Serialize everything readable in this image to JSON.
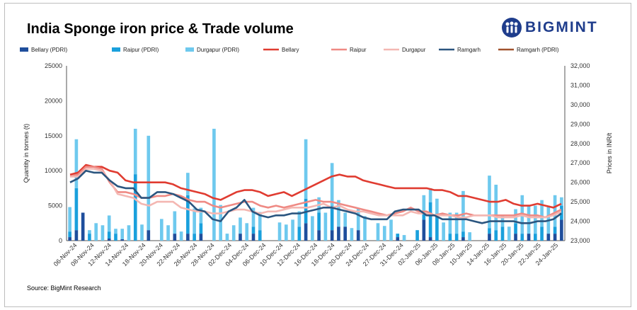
{
  "header": {
    "title": "India Sponge iron price & Trade volume",
    "logo_text": "BIGMINT"
  },
  "footer": {
    "source": "Source: BigMint Research"
  },
  "colors": {
    "bellary_pdri": "#1f4e9c",
    "raipur_pdri": "#1aa0dc",
    "durgapur_pdri": "#6ec9ee",
    "bellary": "#e03c31",
    "raipur": "#ef8a84",
    "durgapur": "#f4b7b2",
    "ramgarh": "#2b557f",
    "ramgarh_pdri": "#a0522d"
  },
  "chart_data": {
    "type": "bar+line",
    "title": "India Sponge iron price & Trade volume",
    "ylabel": "Quantity in tonnes (t)",
    "y2label": "Prices in INR/t",
    "ylim": [
      0,
      25000
    ],
    "y2lim": [
      23000,
      32000
    ],
    "yticks": [
      "0",
      "5000",
      "10000",
      "15000",
      "20000",
      "25000"
    ],
    "y2ticks": [
      "23,000",
      "24,000",
      "25,000",
      "26,000",
      "27,000",
      "28,000",
      "29,000",
      "30,000",
      "31,000",
      "32,000"
    ],
    "x_tick_labels": [
      "06-Nov-24",
      "08-Nov-24",
      "12-Nov-24",
      "14-Nov-24",
      "18-Nov-24",
      "20-Nov-24",
      "22-Nov-24",
      "26-Nov-24",
      "28-Nov-24",
      "02-Dec-24",
      "04-Dec-24",
      "06-Dec-24",
      "10-Dec-24",
      "12-Dec-24",
      "16-Dec-24",
      "18-Dec-24",
      "20-Dec-24",
      "24-Dec-24",
      "27-Dec-24",
      "31-Dec-24",
      "02-Jan-25",
      "06-Jan-25",
      "08-Jan-25",
      "10-Jan-25",
      "14-Jan-25",
      "16-Jan-25",
      "20-Jan-25",
      "22-Jan-25",
      "24-Jan-25"
    ],
    "legend": [
      "Bellary (PDRI)",
      "Raipur (PDRI)",
      "Durgapur (PDRI)",
      "Bellary",
      "Raipur",
      "Durgapur",
      "Ramgarh",
      "Ramgarh (PDRI)"
    ],
    "bar_series": [
      {
        "name": "Bellary (PDRI)",
        "values": [
          500,
          1500,
          4000,
          0,
          0,
          0,
          300,
          0,
          200,
          0,
          0,
          0,
          1500,
          0,
          0,
          0,
          1000,
          0,
          1000,
          0,
          1000,
          0,
          0,
          0,
          0,
          0,
          1000,
          0,
          1000,
          0,
          0,
          0,
          0,
          0,
          0,
          0,
          2500,
          0,
          1500,
          0,
          1500,
          2000,
          2000,
          0,
          1500,
          0,
          0,
          0,
          0,
          0,
          500,
          0,
          0,
          0,
          3000,
          500,
          0,
          0,
          0,
          0,
          500,
          0,
          0,
          0,
          1000,
          0,
          0,
          0,
          1000,
          0,
          1000,
          0,
          0,
          1000,
          1000,
          3000
        ]
      },
      {
        "name": "Raipur (PDRI)",
        "values": [
          800,
          6000,
          0,
          1000,
          0,
          0,
          1000,
          1000,
          0,
          0,
          9500,
          0,
          0,
          0,
          0,
          0,
          0,
          0,
          5500,
          1000,
          1500,
          0,
          0,
          0,
          0,
          0,
          0,
          0,
          1000,
          1500,
          0,
          0,
          0,
          0,
          0,
          2000,
          3500,
          0,
          2500,
          0,
          3500,
          0,
          0,
          0,
          0,
          0,
          0,
          0,
          0,
          0,
          500,
          0,
          0,
          1500,
          1000,
          5000,
          3500,
          0,
          1000,
          1000,
          800,
          0,
          0,
          0,
          800,
          1500,
          2000,
          0,
          1500,
          1000,
          0,
          1000,
          2000,
          0,
          1000,
          2000
        ]
      },
      {
        "name": "Durgapur (PDRI)",
        "values": [
          3500,
          7000,
          0,
          500,
          2500,
          2200,
          2300,
          700,
          1500,
          2200,
          6500,
          2300,
          13500,
          0,
          3100,
          2200,
          3200,
          1300,
          3200,
          3600,
          2200,
          0,
          16000,
          5100,
          1000,
          2200,
          2300,
          2500,
          2700,
          2600,
          0,
          0,
          2600,
          2300,
          3000,
          2200,
          8500,
          3500,
          2200,
          4000,
          6100,
          3800,
          2000,
          1800,
          3200,
          3500,
          0,
          2500,
          2100,
          3000,
          0,
          800,
          0,
          0,
          2500,
          2000,
          2500,
          2600,
          3000,
          3000,
          5800,
          1200,
          0,
          0,
          7500,
          6500,
          1500,
          2000,
          2000,
          5500,
          4000,
          4000,
          3800,
          4000,
          4500,
          1200
        ]
      }
    ],
    "line_series": [
      {
        "name": "Bellary",
        "values": [
          26400,
          26500,
          26900,
          26800,
          26800,
          26600,
          26500,
          26100,
          26000,
          26000,
          26000,
          26000,
          26000,
          25900,
          25700,
          25600,
          25500,
          25400,
          25200,
          25100,
          25300,
          25500,
          25600,
          25600,
          25500,
          25300,
          25400,
          25500,
          25300,
          25500,
          25700,
          25900,
          26100,
          26300,
          26400,
          26300,
          26300,
          26100,
          26000,
          25900,
          25800,
          25700,
          25700,
          25700,
          25700,
          25700,
          25600,
          25600,
          25500,
          25300,
          25300,
          25200,
          25100,
          25000,
          25000,
          25100,
          24900,
          24800,
          24800,
          24900,
          24800,
          24700,
          24900
        ]
      },
      {
        "name": "Raipur",
        "values": [
          26300,
          26400,
          26800,
          26800,
          26700,
          26000,
          25500,
          25500,
          25400,
          25200,
          25200,
          25300,
          25300,
          25400,
          25300,
          25100,
          25000,
          25000,
          24800,
          24700,
          24800,
          24900,
          25000,
          25000,
          24800,
          24700,
          24800,
          24700,
          24800,
          24900,
          25000,
          25100,
          25000,
          25000,
          24900,
          24800,
          24700,
          24600,
          24500,
          24400,
          24300,
          24400,
          24500,
          24700,
          24500,
          24500,
          24300,
          24400,
          24300,
          24300,
          24400,
          24300,
          24300,
          24300,
          24300,
          24300,
          24300,
          24400,
          24300,
          24300,
          24200,
          24400,
          24600
        ]
      },
      {
        "name": "Durgapur",
        "values": [
          26300,
          26300,
          26700,
          26700,
          26600,
          26100,
          25400,
          25300,
          25200,
          24900,
          24800,
          25000,
          25000,
          25000,
          24700,
          24600,
          24500,
          24500,
          24400,
          24400,
          24500,
          24600,
          24600,
          24500,
          24400,
          24500,
          24500,
          24600,
          24700,
          24700,
          24700,
          24800,
          24900,
          24700,
          24800,
          24600,
          24500,
          24500,
          24400,
          24300,
          24300,
          24300,
          24300,
          24500,
          24400,
          24400,
          24300,
          24300,
          24300,
          24200,
          24200,
          24300,
          24300,
          24300,
          24200,
          24200,
          24200,
          24300,
          24200,
          24200,
          24200,
          24300,
          24500
        ]
      },
      {
        "name": "Ramgarh",
        "values": [
          26000,
          26200,
          26600,
          26500,
          26500,
          26100,
          25800,
          25700,
          25700,
          25200,
          25200,
          25500,
          25500,
          25400,
          25200,
          25000,
          24600,
          24500,
          24100,
          24000,
          24500,
          24700,
          25100,
          24500,
          24300,
          24200,
          24300,
          24300,
          24400,
          24400,
          24500,
          24600,
          24700,
          24700,
          24600,
          24500,
          24400,
          24200,
          24100,
          24100,
          24100,
          24500,
          24600,
          24600,
          24600,
          24300,
          24300,
          24100,
          24100,
          24100,
          24100,
          24000,
          23900,
          24000,
          24000,
          24000,
          24000,
          23900,
          23900,
          24000,
          24000,
          24100,
          24400
        ]
      }
    ]
  }
}
